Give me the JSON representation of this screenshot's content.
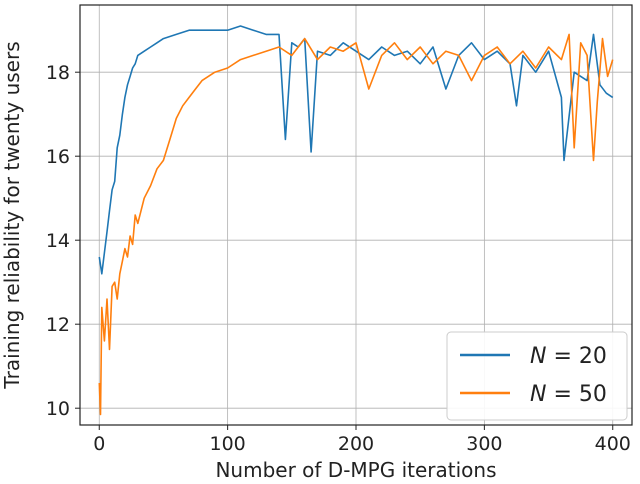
{
  "chart_data": {
    "type": "line",
    "xlabel": "Number of D-MPG iterations",
    "ylabel": "Training reliability for twenty users",
    "xlim": [
      -15,
      415
    ],
    "ylim": [
      9.6,
      19.6
    ],
    "xticks": [
      0,
      100,
      200,
      300,
      400
    ],
    "yticks": [
      10,
      12,
      14,
      16,
      18
    ],
    "grid": true,
    "legend_position": "bottom-right",
    "series": [
      {
        "name_var": "N",
        "name_op": " = ",
        "name_val": "20",
        "color": "#1f77b4",
        "points": [
          [
            0,
            13.6
          ],
          [
            2,
            13.2
          ],
          [
            4,
            13.7
          ],
          [
            6,
            14.2
          ],
          [
            8,
            14.7
          ],
          [
            10,
            15.2
          ],
          [
            12,
            15.4
          ],
          [
            14,
            16.2
          ],
          [
            16,
            16.5
          ],
          [
            18,
            17.0
          ],
          [
            20,
            17.4
          ],
          [
            22,
            17.7
          ],
          [
            24,
            17.9
          ],
          [
            26,
            18.1
          ],
          [
            28,
            18.2
          ],
          [
            30,
            18.4
          ],
          [
            35,
            18.5
          ],
          [
            40,
            18.6
          ],
          [
            45,
            18.7
          ],
          [
            50,
            18.8
          ],
          [
            60,
            18.9
          ],
          [
            70,
            19.0
          ],
          [
            80,
            19.0
          ],
          [
            90,
            19.0
          ],
          [
            100,
            19.0
          ],
          [
            110,
            19.1
          ],
          [
            120,
            19.0
          ],
          [
            130,
            18.9
          ],
          [
            140,
            18.9
          ],
          [
            145,
            16.4
          ],
          [
            150,
            18.7
          ],
          [
            155,
            18.6
          ],
          [
            160,
            18.8
          ],
          [
            165,
            16.1
          ],
          [
            170,
            18.5
          ],
          [
            180,
            18.4
          ],
          [
            190,
            18.7
          ],
          [
            200,
            18.5
          ],
          [
            210,
            18.3
          ],
          [
            220,
            18.6
          ],
          [
            230,
            18.4
          ],
          [
            240,
            18.5
          ],
          [
            250,
            18.2
          ],
          [
            260,
            18.6
          ],
          [
            270,
            17.6
          ],
          [
            280,
            18.4
          ],
          [
            290,
            18.7
          ],
          [
            300,
            18.3
          ],
          [
            310,
            18.5
          ],
          [
            320,
            18.2
          ],
          [
            325,
            17.2
          ],
          [
            330,
            18.4
          ],
          [
            340,
            18.0
          ],
          [
            350,
            18.5
          ],
          [
            360,
            17.4
          ],
          [
            362,
            15.9
          ],
          [
            370,
            18.0
          ],
          [
            380,
            17.8
          ],
          [
            385,
            18.9
          ],
          [
            390,
            17.7
          ],
          [
            395,
            17.5
          ],
          [
            400,
            17.4
          ]
        ]
      },
      {
        "name_var": "N",
        "name_op": " = ",
        "name_val": "50",
        "color": "#ff7f0e",
        "points": [
          [
            0,
            10.6
          ],
          [
            1,
            9.85
          ],
          [
            2,
            12.4
          ],
          [
            4,
            11.6
          ],
          [
            6,
            12.6
          ],
          [
            8,
            11.4
          ],
          [
            10,
            12.9
          ],
          [
            12,
            13.0
          ],
          [
            14,
            12.6
          ],
          [
            16,
            13.2
          ],
          [
            18,
            13.5
          ],
          [
            20,
            13.8
          ],
          [
            22,
            13.6
          ],
          [
            24,
            14.1
          ],
          [
            26,
            13.9
          ],
          [
            28,
            14.6
          ],
          [
            30,
            14.4
          ],
          [
            35,
            15.0
          ],
          [
            40,
            15.3
          ],
          [
            45,
            15.7
          ],
          [
            50,
            15.9
          ],
          [
            55,
            16.4
          ],
          [
            60,
            16.9
          ],
          [
            65,
            17.2
          ],
          [
            70,
            17.4
          ],
          [
            75,
            17.6
          ],
          [
            80,
            17.8
          ],
          [
            90,
            18.0
          ],
          [
            100,
            18.1
          ],
          [
            110,
            18.3
          ],
          [
            120,
            18.4
          ],
          [
            130,
            18.5
          ],
          [
            140,
            18.6
          ],
          [
            150,
            18.4
          ],
          [
            160,
            18.8
          ],
          [
            170,
            18.3
          ],
          [
            180,
            18.6
          ],
          [
            190,
            18.5
          ],
          [
            200,
            18.7
          ],
          [
            210,
            17.6
          ],
          [
            220,
            18.4
          ],
          [
            230,
            18.7
          ],
          [
            240,
            18.3
          ],
          [
            250,
            18.6
          ],
          [
            260,
            18.2
          ],
          [
            270,
            18.5
          ],
          [
            280,
            18.4
          ],
          [
            290,
            17.8
          ],
          [
            300,
            18.4
          ],
          [
            310,
            18.6
          ],
          [
            320,
            18.2
          ],
          [
            330,
            18.5
          ],
          [
            340,
            18.1
          ],
          [
            350,
            18.6
          ],
          [
            360,
            18.3
          ],
          [
            366,
            18.9
          ],
          [
            370,
            16.2
          ],
          [
            375,
            18.7
          ],
          [
            380,
            18.4
          ],
          [
            385,
            15.9
          ],
          [
            388,
            17.3
          ],
          [
            392,
            18.8
          ],
          [
            396,
            17.9
          ],
          [
            400,
            18.3
          ]
        ]
      }
    ]
  }
}
